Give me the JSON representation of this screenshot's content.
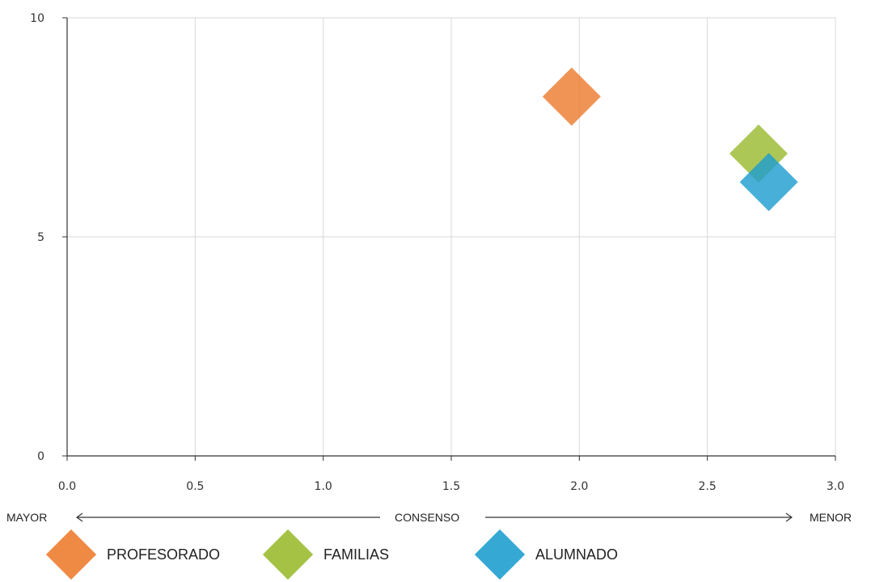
{
  "chart_data": {
    "type": "scatter",
    "xlim": [
      0,
      3
    ],
    "ylim": [
      0,
      10
    ],
    "x_ticks": [
      "0.0",
      "0.5",
      "1.0",
      "1.5",
      "2.0",
      "2.5",
      "3.0"
    ],
    "y_ticks": [
      "0",
      "5",
      "10"
    ],
    "grid": true,
    "axis_caption": {
      "left": "MAYOR",
      "center": "CONSENSO",
      "right": "MENOR"
    },
    "series": [
      {
        "name": "PROFESORADO",
        "color": "#ED7D31",
        "marker": "diamond",
        "points": [
          {
            "x": 1.97,
            "y": 8.2
          }
        ]
      },
      {
        "name": "FAMILIAS",
        "color": "#9BBB31",
        "marker": "diamond",
        "points": [
          {
            "x": 2.7,
            "y": 6.9
          }
        ]
      },
      {
        "name": "ALUMNADO",
        "color": "#1F9ECF",
        "marker": "diamond",
        "points": [
          {
            "x": 2.74,
            "y": 6.25
          }
        ]
      }
    ],
    "legend_position": "bottom"
  }
}
